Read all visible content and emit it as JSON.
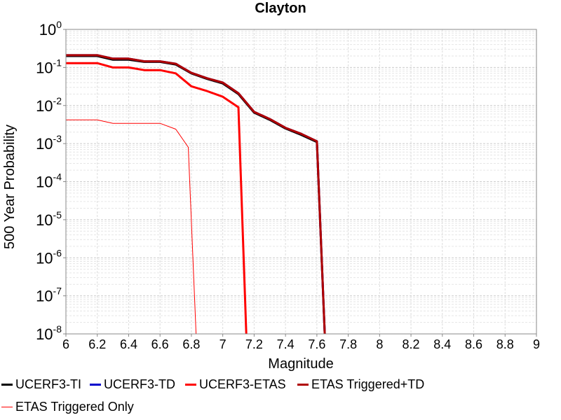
{
  "chart_data": {
    "type": "line",
    "title": "Clayton",
    "xlabel": "Magnitude",
    "ylabel": "500 Year Probability",
    "xlim": [
      6,
      9
    ],
    "ylim": [
      1e-08,
      1
    ],
    "yscale": "log",
    "grid": true,
    "legend_position": "bottom",
    "x_ticks": [
      "6",
      "6.2",
      "6.4",
      "6.6",
      "6.8",
      "7",
      "7.2",
      "7.4",
      "7.6",
      "7.8",
      "8",
      "8.2",
      "8.4",
      "8.6",
      "8.8",
      "9"
    ],
    "y_ticks": [
      {
        "base": "10",
        "exp": "0"
      },
      {
        "base": "10",
        "exp": "-1"
      },
      {
        "base": "10",
        "exp": "-2"
      },
      {
        "base": "10",
        "exp": "-3"
      },
      {
        "base": "10",
        "exp": "-4"
      },
      {
        "base": "10",
        "exp": "-5"
      },
      {
        "base": "10",
        "exp": "-6"
      },
      {
        "base": "10",
        "exp": "-7"
      },
      {
        "base": "10",
        "exp": "-8"
      }
    ],
    "series": [
      {
        "name": "UCERF3-TI",
        "color": "#000000",
        "width": 3,
        "x": [
          6.0,
          6.2,
          6.3,
          6.4,
          6.5,
          6.6,
          6.7,
          6.8,
          6.9,
          7.0,
          7.1,
          7.2,
          7.3,
          7.4,
          7.5,
          7.6,
          7.65
        ],
        "y": [
          0.2,
          0.2,
          0.16,
          0.16,
          0.14,
          0.14,
          0.12,
          0.07,
          0.05,
          0.038,
          0.02,
          0.0065,
          0.0042,
          0.0025,
          0.0017,
          0.0011,
          1e-08
        ]
      },
      {
        "name": "UCERF3-TD",
        "color": "#0000cc",
        "width": 3,
        "x": [
          6.0,
          6.2,
          6.3,
          6.4,
          6.5,
          6.6,
          6.7,
          6.8,
          6.9,
          7.0,
          7.1,
          7.2,
          7.3,
          7.4,
          7.5,
          7.6,
          7.65
        ],
        "y": [
          0.21,
          0.21,
          0.17,
          0.17,
          0.145,
          0.145,
          0.125,
          0.072,
          0.052,
          0.04,
          0.021,
          0.0068,
          0.0044,
          0.0026,
          0.0018,
          0.00115,
          1e-08
        ]
      },
      {
        "name": "UCERF3-ETAS",
        "color": "#ff0000",
        "width": 3,
        "x": [
          6.0,
          6.2,
          6.3,
          6.4,
          6.5,
          6.6,
          6.7,
          6.8,
          6.9,
          7.0,
          7.1,
          7.15
        ],
        "y": [
          0.13,
          0.13,
          0.1,
          0.1,
          0.085,
          0.085,
          0.07,
          0.032,
          0.024,
          0.017,
          0.009,
          1e-08
        ]
      },
      {
        "name": "ETAS Triggered+TD",
        "color": "#b00000",
        "width": 3,
        "x": [
          6.0,
          6.2,
          6.3,
          6.4,
          6.5,
          6.6,
          6.7,
          6.8,
          6.9,
          7.0,
          7.1,
          7.2,
          7.3,
          7.4,
          7.5,
          7.6,
          7.65
        ],
        "y": [
          0.21,
          0.21,
          0.17,
          0.17,
          0.145,
          0.145,
          0.125,
          0.072,
          0.052,
          0.04,
          0.021,
          0.0068,
          0.0044,
          0.0026,
          0.0018,
          0.00115,
          1e-08
        ]
      },
      {
        "name": "ETAS Triggered Only",
        "color": "#ff0000",
        "width": 1,
        "x": [
          6.0,
          6.2,
          6.3,
          6.4,
          6.5,
          6.6,
          6.7,
          6.78,
          6.83
        ],
        "y": [
          0.0042,
          0.0042,
          0.0034,
          0.0034,
          0.0034,
          0.0034,
          0.0024,
          0.0008,
          1e-08
        ]
      }
    ]
  }
}
